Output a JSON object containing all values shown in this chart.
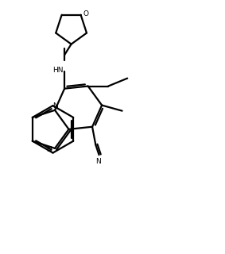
{
  "bg": "#ffffff",
  "lc": "#000000",
  "lw": 1.6,
  "figsize": [
    2.83,
    3.2
  ],
  "dpi": 100,
  "xlim": [
    0,
    10
  ],
  "ylim": [
    0,
    11.3
  ]
}
